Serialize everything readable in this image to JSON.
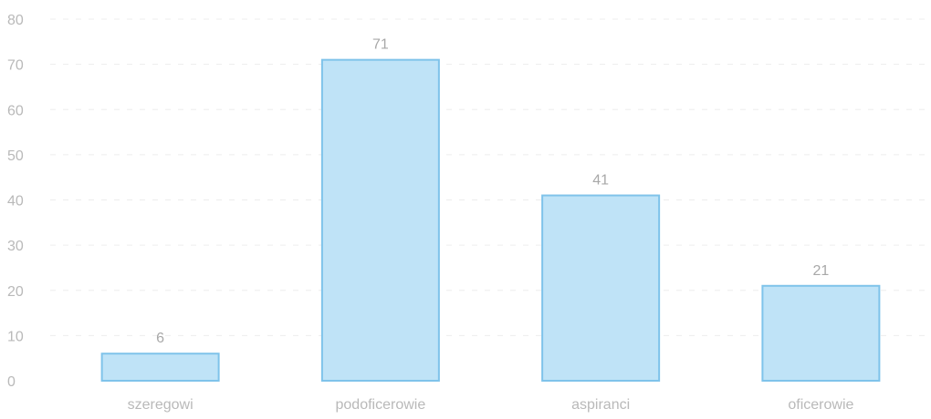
{
  "chart_data": {
    "type": "bar",
    "categories": [
      "szeregowi",
      "podoficerowie",
      "aspiranci",
      "oficerowie"
    ],
    "values": [
      6,
      71,
      41,
      21
    ],
    "data_labels": [
      "6",
      "71",
      "41",
      "21"
    ],
    "ylim": [
      0,
      80
    ],
    "y_ticks": [
      "0",
      "10",
      "20",
      "30",
      "40",
      "50",
      "60",
      "70",
      "80"
    ],
    "grid": true,
    "legend": "none",
    "colors": {
      "bar_fill": "#bfe3f7",
      "bar_stroke": "#7fc3ea",
      "text": "#b9b9b9"
    }
  }
}
